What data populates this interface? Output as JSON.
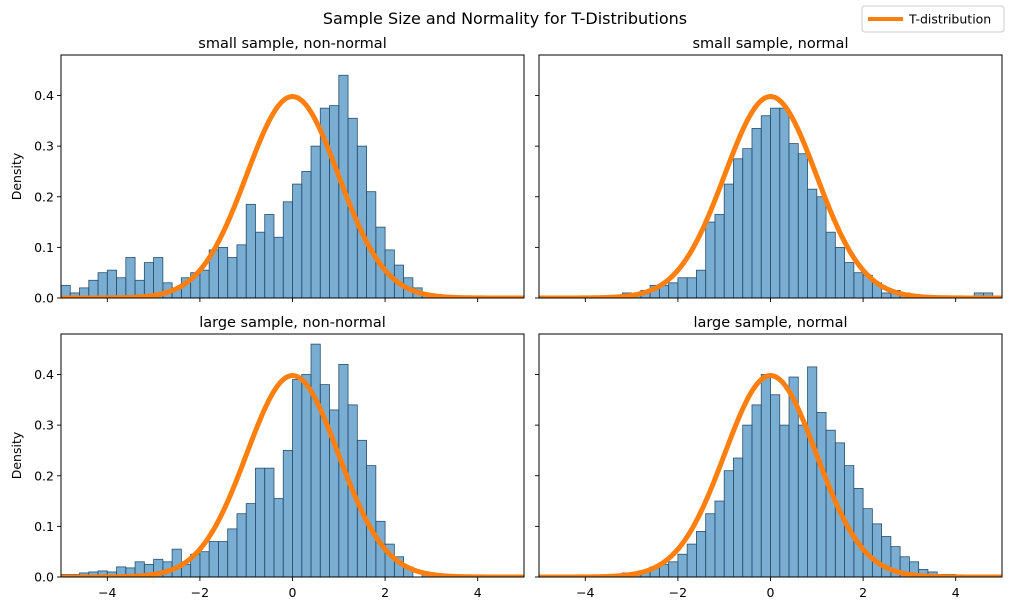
{
  "figure": {
    "suptitle": "Sample Size and Normality for T-Distributions",
    "legend": {
      "label": "T-distribution",
      "placement": "top-right"
    }
  },
  "colors": {
    "hist_fill": "#1f77b4",
    "hist_edge": "#2a4f6e",
    "curve": "#ff7f0e"
  },
  "chart_data": [
    {
      "type": "bar",
      "title": "small sample, non-normal",
      "xlabel": "",
      "ylabel": "Density",
      "xlim": [
        -5,
        5
      ],
      "ylim": [
        0,
        0.48
      ],
      "xticks": [
        -4,
        -2,
        0,
        2,
        4
      ],
      "yticks": [
        0.0,
        0.1,
        0.2,
        0.3,
        0.4
      ],
      "show_xticklabels": false,
      "show_yticklabels": true,
      "bins": {
        "start": -5.0,
        "width": 0.2,
        "density": [
          0.025,
          0.01,
          0.02,
          0.035,
          0.05,
          0.055,
          0.04,
          0.08,
          0.035,
          0.07,
          0.08,
          0.03,
          0.02,
          0.04,
          0.05,
          0.055,
          0.095,
          0.1,
          0.08,
          0.105,
          0.185,
          0.13,
          0.165,
          0.12,
          0.19,
          0.225,
          0.25,
          0.3,
          0.375,
          0.38,
          0.44,
          0.355,
          0.3,
          0.21,
          0.14,
          0.095,
          0.065,
          0.04,
          0.02,
          0.005,
          0.005
        ]
      },
      "series": [
        {
          "name": "T-distribution",
          "kind": "line",
          "distribution": "t",
          "df": 100
        }
      ]
    },
    {
      "type": "bar",
      "title": "small sample, normal",
      "xlabel": "",
      "ylabel": "",
      "xlim": [
        -5,
        5
      ],
      "ylim": [
        0,
        0.48
      ],
      "xticks": [
        -4,
        -2,
        0,
        2,
        4
      ],
      "yticks": [
        0.0,
        0.1,
        0.2,
        0.3,
        0.4
      ],
      "show_xticklabels": false,
      "show_yticklabels": false,
      "bins": {
        "start": -3.4,
        "width": 0.2,
        "density": [
          0.0,
          0.01,
          0.005,
          0.015,
          0.025,
          0.025,
          0.03,
          0.04,
          0.04,
          0.055,
          0.15,
          0.165,
          0.225,
          0.275,
          0.295,
          0.335,
          0.36,
          0.375,
          0.375,
          0.305,
          0.285,
          0.215,
          0.2,
          0.13,
          0.1,
          0.07,
          0.05,
          0.045,
          0.03,
          0.01,
          0.015,
          0.01,
          0.005,
          0,
          0,
          0,
          0,
          0,
          0,
          0.01,
          0.01
        ]
      },
      "series": [
        {
          "name": "T-distribution",
          "kind": "line",
          "distribution": "t",
          "df": 100
        }
      ]
    },
    {
      "type": "bar",
      "title": "large sample, non-normal",
      "xlabel": "",
      "ylabel": "Density",
      "xlim": [
        -5,
        5
      ],
      "ylim": [
        0,
        0.48
      ],
      "xticks": [
        -4,
        -2,
        0,
        2,
        4
      ],
      "yticks": [
        0.0,
        0.1,
        0.2,
        0.3,
        0.4
      ],
      "show_xticklabels": true,
      "show_yticklabels": true,
      "bins": {
        "start": -5.0,
        "width": 0.2,
        "density": [
          0.005,
          0.005,
          0.008,
          0.01,
          0.012,
          0.01,
          0.02,
          0.018,
          0.03,
          0.025,
          0.035,
          0.03,
          0.055,
          0.025,
          0.045,
          0.05,
          0.07,
          0.07,
          0.095,
          0.125,
          0.145,
          0.215,
          0.215,
          0.155,
          0.25,
          0.39,
          0.4,
          0.46,
          0.38,
          0.33,
          0.42,
          0.34,
          0.27,
          0.22,
          0.11,
          0.065,
          0.04,
          0.02,
          0.0,
          0.005,
          0.0
        ]
      },
      "series": [
        {
          "name": "T-distribution",
          "kind": "line",
          "distribution": "t",
          "df": 100
        }
      ]
    },
    {
      "type": "bar",
      "title": "large sample, normal",
      "xlabel": "",
      "ylabel": "",
      "xlim": [
        -5,
        5
      ],
      "ylim": [
        0,
        0.48
      ],
      "xticks": [
        -4,
        -2,
        0,
        2,
        4
      ],
      "yticks": [
        0.0,
        0.1,
        0.2,
        0.3,
        0.4
      ],
      "show_xticklabels": true,
      "show_yticklabels": false,
      "bins": {
        "start": -3.4,
        "width": 0.2,
        "density": [
          0.0,
          0.008,
          0.005,
          0.012,
          0.02,
          0.025,
          0.03,
          0.045,
          0.065,
          0.09,
          0.125,
          0.15,
          0.21,
          0.235,
          0.3,
          0.34,
          0.4,
          0.36,
          0.3,
          0.395,
          0.3,
          0.415,
          0.325,
          0.29,
          0.265,
          0.22,
          0.175,
          0.135,
          0.105,
          0.08,
          0.06,
          0.04,
          0.03,
          0.015,
          0.01,
          0.005,
          0.005,
          0,
          0,
          0,
          0
        ]
      },
      "series": [
        {
          "name": "T-distribution",
          "kind": "line",
          "distribution": "t",
          "df": 100
        }
      ]
    }
  ]
}
